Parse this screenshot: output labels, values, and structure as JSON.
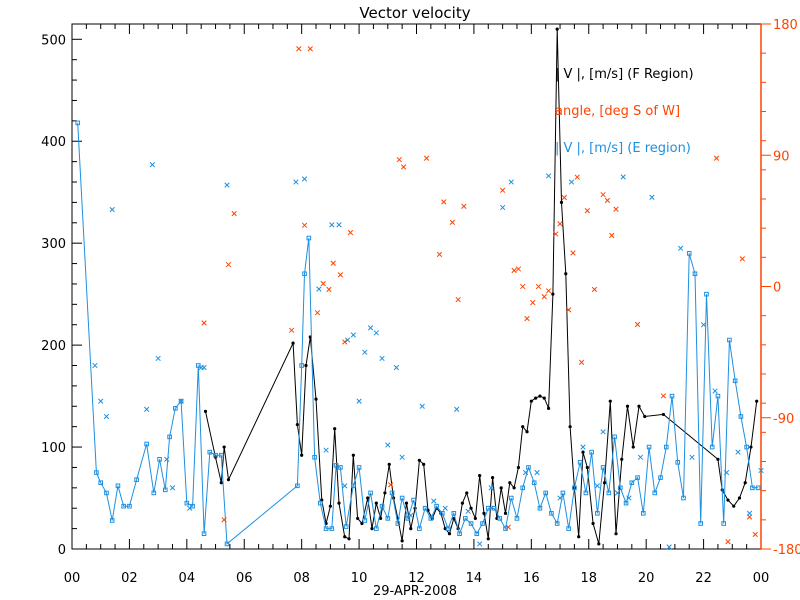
{
  "chart_data": {
    "type": "line",
    "title": "Vector velocity",
    "xlabel": "29-APR-2008",
    "ylabel": "",
    "xlim": [
      0,
      24
    ],
    "ylim": [
      0,
      515
    ],
    "y2lim": [
      -180,
      180
    ],
    "x_tick_labels": [
      "00",
      "02",
      "04",
      "06",
      "08",
      "10",
      "12",
      "14",
      "16",
      "18",
      "20",
      "22",
      "00"
    ],
    "y_ticks": [
      0,
      100,
      200,
      300,
      400,
      500
    ],
    "y2_ticks": [
      -180,
      -90,
      0,
      90,
      180
    ],
    "y2_tick_labels": [
      "-180",
      "-90",
      "0",
      "90",
      "180"
    ],
    "legend_position": "top-right",
    "colors": {
      "axis": "#000000",
      "f_region": "#000000",
      "angle": "#ff4400",
      "e_region": "#1e90e0"
    },
    "series": [
      {
        "name": "| V |, [m/s] (F Region)",
        "axis": "left",
        "style": "line-dot",
        "x": [
          4.65,
          5.0,
          5.2,
          5.3,
          5.45,
          7.7,
          7.85,
          8.0,
          8.15,
          8.3,
          8.5,
          8.7,
          8.85,
          9.0,
          9.15,
          9.3,
          9.5,
          9.65,
          9.8,
          9.95,
          10.1,
          10.3,
          10.45,
          10.6,
          10.75,
          10.9,
          11.05,
          11.2,
          11.35,
          11.5,
          11.65,
          11.8,
          11.95,
          12.1,
          12.25,
          12.4,
          12.55,
          12.7,
          12.85,
          13.0,
          13.15,
          13.3,
          13.45,
          13.6,
          13.75,
          13.9,
          14.05,
          14.2,
          14.35,
          14.5,
          14.65,
          14.8,
          14.95,
          15.1,
          15.25,
          15.4,
          15.55,
          15.7,
          15.85,
          16.0,
          16.15,
          16.3,
          16.45,
          16.6,
          16.75,
          16.9,
          17.05,
          17.2,
          17.35,
          17.5,
          17.65,
          17.8,
          17.95,
          18.15,
          18.35,
          18.55,
          18.75,
          18.95,
          19.15,
          19.35,
          19.55,
          19.75,
          19.95,
          20.6,
          22.5,
          22.65,
          22.85,
          23.05,
          23.25,
          23.45,
          23.65,
          23.85
        ],
        "y": [
          135,
          90,
          65,
          100,
          68,
          202,
          122,
          92,
          180,
          208,
          147,
          48,
          25,
          42,
          118,
          45,
          12,
          10,
          92,
          30,
          25,
          50,
          20,
          45,
          30,
          55,
          83,
          50,
          30,
          8,
          45,
          20,
          40,
          87,
          83,
          38,
          30,
          40,
          35,
          20,
          15,
          30,
          20,
          45,
          55,
          40,
          30,
          72,
          35,
          10,
          70,
          30,
          60,
          35,
          65,
          60,
          80,
          120,
          115,
          145,
          148,
          150,
          148,
          138,
          250,
          510,
          340,
          270,
          120,
          60,
          12,
          95,
          80,
          25,
          5,
          65,
          145,
          15,
          88,
          140,
          100,
          140,
          130,
          132,
          88,
          58,
          48,
          42,
          50,
          65,
          100,
          145
        ]
      },
      {
        "name": "angle, [deg S of W]",
        "axis": "right",
        "style": "marker",
        "x": [
          4.6,
          5.3,
          5.45,
          5.65,
          7.65,
          7.9,
          8.1,
          8.3,
          8.55,
          8.75,
          8.95,
          9.1,
          9.35,
          9.5,
          9.7,
          11.1,
          11.4,
          11.55,
          12.35,
          12.8,
          12.95,
          13.25,
          13.45,
          13.65,
          14.6,
          15.0,
          15.2,
          15.4,
          15.55,
          15.7,
          15.85,
          16.05,
          16.25,
          16.45,
          16.6,
          16.85,
          17.0,
          17.15,
          17.3,
          17.45,
          17.6,
          17.75,
          17.95,
          18.2,
          18.5,
          18.65,
          18.8,
          18.95,
          19.7,
          20.6,
          22.45,
          22.85,
          23.35,
          23.6,
          23.8
        ],
        "y": [
          -25,
          -160,
          15,
          50,
          -30,
          163,
          42,
          163,
          -18,
          2,
          -2,
          16,
          8,
          -38,
          37,
          -136,
          87,
          82,
          88,
          22,
          58,
          44,
          -9,
          55,
          -152,
          66,
          -165,
          11,
          12,
          0,
          -22,
          -11,
          0,
          -7,
          -3,
          36,
          43,
          61,
          -16,
          23,
          75,
          -52,
          52,
          -2,
          63,
          59,
          35,
          53,
          -26,
          -75,
          88,
          -175,
          19,
          -158,
          -170
        ]
      },
      {
        "name": "| V |, [m/s] (E region)",
        "axis": "left",
        "style": "line-square",
        "x": [
          0.2,
          0.85,
          1.0,
          1.2,
          1.4,
          1.6,
          1.8,
          2.0,
          2.25,
          2.6,
          2.85,
          3.05,
          3.25,
          3.4,
          3.6,
          3.8,
          4.0,
          4.2,
          4.4,
          4.6,
          4.8,
          5.0,
          5.2,
          5.4,
          7.85,
          8.0,
          8.1,
          8.25,
          8.45,
          8.65,
          8.85,
          9.05,
          9.2,
          9.35,
          9.55,
          9.8,
          10.0,
          10.2,
          10.4,
          10.6,
          10.8,
          11.0,
          11.15,
          11.35,
          11.5,
          11.7,
          11.9,
          12.1,
          12.3,
          12.5,
          12.7,
          12.9,
          13.1,
          13.3,
          13.5,
          13.7,
          13.9,
          14.1,
          14.3,
          14.5,
          14.7,
          14.9,
          15.1,
          15.3,
          15.5,
          15.7,
          15.9,
          16.1,
          16.3,
          16.5,
          16.7,
          16.9,
          17.1,
          17.3,
          17.5,
          17.7,
          17.9,
          18.1,
          18.3,
          18.5,
          18.7,
          18.9,
          19.1,
          19.3,
          19.5,
          19.7,
          19.9,
          20.1,
          20.3,
          20.5,
          20.7,
          20.9,
          21.1,
          21.3,
          21.5,
          21.7,
          21.9,
          22.1,
          22.3,
          22.5,
          22.7,
          22.9,
          23.1,
          23.3,
          23.5,
          23.7,
          23.9
        ],
        "y": [
          418,
          75,
          65,
          55,
          28,
          62,
          42,
          42,
          68,
          103,
          55,
          88,
          58,
          110,
          138,
          145,
          45,
          42,
          180,
          15,
          95,
          92,
          92,
          5,
          62,
          180,
          270,
          305,
          90,
          45,
          20,
          20,
          82,
          80,
          22,
          62,
          80,
          28,
          55,
          20,
          42,
          30,
          55,
          25,
          50,
          30,
          48,
          20,
          40,
          30,
          42,
          35,
          20,
          35,
          15,
          30,
          25,
          15,
          25,
          40,
          40,
          30,
          20,
          50,
          30,
          60,
          80,
          65,
          40,
          55,
          35,
          25,
          55,
          20,
          60,
          85,
          55,
          95,
          35,
          80,
          55,
          110,
          60,
          45,
          65,
          70,
          35,
          100,
          55,
          70,
          100,
          150,
          85,
          50,
          290,
          270,
          25,
          250,
          100,
          150,
          25,
          205,
          165,
          130,
          100,
          60,
          60
        ]
      },
      {
        "name": "",
        "axis": "left",
        "style": "marker-only",
        "x": [
          0.8,
          1.0,
          1.2,
          1.4,
          2.6,
          2.8,
          3.0,
          3.3,
          3.5,
          3.8,
          4.1,
          4.5,
          4.6,
          5.4,
          7.8,
          8.1,
          8.6,
          8.85,
          9.05,
          9.3,
          9.5,
          9.6,
          9.8,
          10.0,
          10.2,
          10.4,
          10.6,
          10.8,
          11.0,
          11.3,
          11.5,
          11.8,
          12.2,
          12.6,
          13.0,
          13.4,
          13.8,
          14.2,
          14.6,
          15.0,
          15.3,
          15.8,
          16.2,
          16.6,
          17.0,
          17.4,
          17.8,
          18.3,
          18.5,
          19.0,
          19.2,
          19.4,
          19.8,
          20.2,
          20.8,
          21.2,
          21.6,
          22.0,
          22.4,
          22.8,
          23.2,
          23.6,
          24.0
        ],
        "y": [
          180,
          145,
          130,
          333,
          137,
          377,
          187,
          88,
          60,
          145,
          40,
          178,
          178,
          357,
          360,
          363,
          255,
          97,
          318,
          318,
          62,
          205,
          210,
          145,
          193,
          217,
          212,
          187,
          102,
          178,
          90,
          33,
          140,
          47,
          40,
          137,
          37,
          5,
          60,
          335,
          360,
          75,
          75,
          366,
          50,
          360,
          100,
          62,
          115,
          55,
          365,
          50,
          90,
          345,
          2,
          295,
          90,
          220,
          155,
          75,
          95,
          35,
          77
        ]
      }
    ]
  }
}
